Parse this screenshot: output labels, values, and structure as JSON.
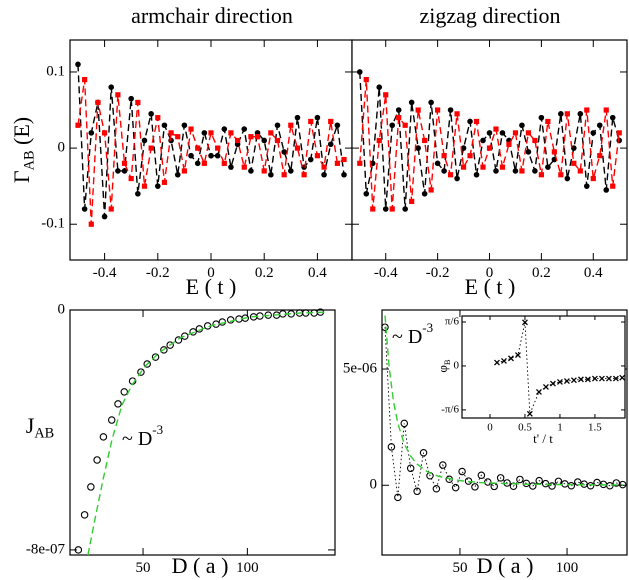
{
  "chart_data": [
    {
      "type": "line",
      "title": "armchair direction",
      "xlabel": "E ( t )",
      "ylabel": {
        "text": "Γ",
        "sub": "AB",
        "tail": " (E)"
      },
      "xlim": [
        -0.53,
        0.53
      ],
      "xticks": [
        -0.4,
        -0.2,
        0,
        0.2,
        0.4
      ],
      "ylim": [
        -0.147,
        0.142
      ],
      "yticks": [
        -0.1,
        0,
        0.1
      ],
      "ytick_labels": true,
      "x": [
        -0.5,
        -0.475,
        -0.45,
        -0.425,
        -0.4,
        -0.375,
        -0.35,
        -0.325,
        -0.3,
        -0.275,
        -0.25,
        -0.225,
        -0.2,
        -0.175,
        -0.15,
        -0.125,
        -0.1,
        -0.075,
        -0.05,
        -0.025,
        0,
        0.025,
        0.05,
        0.075,
        0.1,
        0.125,
        0.15,
        0.175,
        0.2,
        0.225,
        0.25,
        0.275,
        0.3,
        0.325,
        0.35,
        0.375,
        0.4,
        0.425,
        0.45,
        0.475,
        0.5
      ],
      "series": [
        {
          "color": "#000000",
          "marker": "circle",
          "line": "dashed",
          "values": [
            0.11,
            -0.08,
            0.02,
            0.06,
            -0.09,
            0.08,
            -0.03,
            -0.03,
            0.065,
            -0.06,
            0.01,
            0.045,
            -0.05,
            0.03,
            0.01,
            -0.035,
            0.03,
            -0.01,
            -0.02,
            0.02,
            -0.01,
            -0.01,
            0.025,
            -0.025,
            0.005,
            0.025,
            -0.03,
            0.02,
            0.01,
            -0.035,
            0.03,
            -0.005,
            -0.03,
            0.04,
            -0.025,
            -0.015,
            0.04,
            -0.035,
            0.005,
            0.03,
            -0.035
          ]
        },
        {
          "color": "#ff0000",
          "marker": "square",
          "line": "dashed",
          "values": [
            0.03,
            0.09,
            -0.1,
            0.06,
            0.02,
            -0.08,
            0.07,
            -0.02,
            -0.04,
            0.06,
            -0.05,
            0.0,
            0.04,
            -0.045,
            0.02,
            0.015,
            -0.03,
            0.025,
            0.0,
            -0.02,
            0.02,
            0.0,
            -0.02,
            0.02,
            0.01,
            -0.025,
            0.015,
            0.015,
            -0.03,
            0.02,
            0.01,
            -0.035,
            0.03,
            0.0,
            -0.035,
            0.035,
            -0.01,
            -0.025,
            0.035,
            -0.02,
            -0.015
          ]
        }
      ]
    },
    {
      "type": "line",
      "title": "zigzag direction",
      "xlabel": "E ( t )",
      "xlim": [
        -0.53,
        0.53
      ],
      "xticks": [
        -0.4,
        -0.2,
        0,
        0.2,
        0.4
      ],
      "ylim": [
        -0.147,
        0.142
      ],
      "yticks": [
        -0.1,
        0,
        0.1
      ],
      "ytick_labels": false,
      "x": [
        -0.5,
        -0.475,
        -0.45,
        -0.425,
        -0.4,
        -0.375,
        -0.35,
        -0.325,
        -0.3,
        -0.275,
        -0.25,
        -0.225,
        -0.2,
        -0.175,
        -0.15,
        -0.125,
        -0.1,
        -0.075,
        -0.05,
        -0.025,
        0,
        0.025,
        0.05,
        0.075,
        0.1,
        0.125,
        0.15,
        0.175,
        0.2,
        0.225,
        0.25,
        0.275,
        0.3,
        0.325,
        0.35,
        0.375,
        0.4,
        0.425,
        0.45,
        0.475,
        0.5
      ],
      "series": [
        {
          "color": "#000000",
          "marker": "circle",
          "line": "dashed",
          "values": [
            0.1,
            -0.06,
            -0.02,
            0.08,
            -0.08,
            0.03,
            0.05,
            -0.08,
            0.06,
            0.0,
            -0.06,
            0.06,
            -0.02,
            -0.03,
            0.05,
            -0.04,
            0.0,
            0.035,
            -0.035,
            0.01,
            0.02,
            -0.03,
            0.02,
            0.01,
            -0.03,
            0.03,
            -0.005,
            -0.03,
            0.04,
            -0.025,
            -0.015,
            0.045,
            -0.04,
            0.0,
            0.045,
            -0.05,
            0.02,
            0.03,
            -0.055,
            0.04,
            0.01
          ]
        },
        {
          "color": "#ff0000",
          "marker": "square",
          "line": "dashed",
          "values": [
            -0.02,
            0.09,
            -0.08,
            0.01,
            0.07,
            -0.08,
            0.04,
            0.03,
            -0.07,
            0.05,
            0.01,
            -0.055,
            0.05,
            -0.01,
            -0.035,
            0.045,
            -0.025,
            -0.01,
            0.035,
            -0.025,
            0.0,
            0.025,
            -0.025,
            0.005,
            0.02,
            -0.03,
            0.02,
            0.01,
            -0.035,
            0.035,
            -0.005,
            -0.035,
            0.045,
            -0.02,
            -0.03,
            0.05,
            -0.04,
            -0.01,
            0.05,
            -0.05,
            0.02
          ]
        }
      ]
    },
    {
      "type": "scatter",
      "xlabel": "D ( a )",
      "ylabel": {
        "text": "J",
        "sub": "AB"
      },
      "annotation": {
        "text": "~ D",
        "sup": "-3"
      },
      "xlim": [
        15,
        142
      ],
      "xticks": [
        50,
        100
      ],
      "ylim": [
        -8.17e-07,
        0
      ],
      "yticks": [
        {
          "value": -8e-07,
          "label": "-8e-07"
        },
        0
      ],
      "ytick_labels": true,
      "series": [
        {
          "color": "#000000",
          "marker": "circle-open",
          "line": "none",
          "x": [
            19,
            22,
            25,
            28,
            31,
            35,
            38,
            41,
            45,
            49,
            52,
            56,
            60,
            63,
            67,
            70,
            74,
            77,
            81,
            85,
            88,
            92,
            96,
            99,
            103,
            106,
            110,
            114,
            117,
            121,
            125,
            128,
            132,
            135
          ],
          "values": [
            -8e-07,
            -6.83e-07,
            -5.9e-07,
            -5e-07,
            -4.23e-07,
            -3.67e-07,
            -3.13e-07,
            -2.73e-07,
            -2.37e-07,
            -2.07e-07,
            -1.8e-07,
            -1.57e-07,
            -1.33e-07,
            -1.17e-07,
            -1e-07,
            -8.7e-08,
            -7.3e-08,
            -6.3e-08,
            -5.3e-08,
            -4.7e-08,
            -4e-08,
            -3.3e-08,
            -3e-08,
            -2.7e-08,
            -2.3e-08,
            -2e-08,
            -1.7e-08,
            -1.7e-08,
            -1.3e-08,
            -1.3e-08,
            -1e-08,
            -1e-08,
            -1e-08,
            -7e-09
          ]
        },
        {
          "color": "#33cc33",
          "marker": "none",
          "line": "dashed",
          "x": [
            23.6,
            26.9,
            30.8,
            35.1,
            39.9,
            44.7,
            51,
            58.2,
            67.8,
            82.2,
            101.4,
            125.5,
            137.5
          ],
          "values": [
            -8.17e-07,
            -7e-07,
            -5.67e-07,
            -4.33e-07,
            -3.17e-07,
            -2.5e-07,
            -1.87e-07,
            -1.4e-07,
            -9.3e-08,
            -5.3e-08,
            -2.3e-08,
            -1e-08,
            -7e-09
          ]
        }
      ]
    },
    {
      "type": "scatter",
      "xlabel": "D ( a )",
      "annotation": {
        "text": "~ D",
        "sup": "-3"
      },
      "xlim": [
        13.6,
        128
      ],
      "xticks": [
        50,
        100
      ],
      "ylim": [
        -3e-06,
        7.54e-06
      ],
      "yticks": [
        0,
        {
          "value": 5e-06,
          "label": "5e-06"
        }
      ],
      "ytick_labels": true,
      "series": [
        {
          "color": "#000000",
          "marker": "circle-open",
          "line": "dotted",
          "x": [
            15,
            18,
            21,
            24,
            27,
            30,
            33,
            36,
            39,
            42,
            45,
            48,
            51,
            54,
            57,
            60,
            63,
            66,
            69,
            72,
            75,
            78,
            81,
            84,
            87,
            90,
            93,
            96,
            99,
            102,
            105,
            108,
            111,
            114,
            117,
            120,
            123,
            126
          ],
          "values": [
            6.8e-06,
            1.65e-06,
            -5.2e-07,
            2.66e-06,
            7.3e-07,
            -2.6e-07,
            1.4e-06,
            4.1e-07,
            -1.5e-07,
            8.7e-07,
            2.6e-07,
            -1e-07,
            5.9e-07,
            1.8e-07,
            -7e-08,
            4.3e-07,
            1.4e-07,
            -5e-08,
            3.2e-07,
            1e-07,
            -4e-08,
            2.5e-07,
            8e-08,
            -3e-08,
            2e-07,
            7e-08,
            -3e-08,
            1.7e-07,
            6e-08,
            -2e-08,
            1.4e-07,
            5e-08,
            -2e-08,
            1.2e-07,
            4e-08,
            -2e-08,
            1e-07,
            3e-08
          ]
        },
        {
          "color": "#33cc33",
          "marker": "none",
          "line": "dashed",
          "x": [
            15,
            17,
            19,
            21,
            24,
            27,
            30,
            35,
            40,
            50,
            60,
            80,
            100,
            126
          ],
          "values": [
            7.3e-06,
            5.02e-06,
            3.59e-06,
            2.66e-06,
            1.78e-06,
            1.25e-06,
            9.1e-07,
            5.7e-07,
            3.85e-07,
            2e-07,
            1.1e-07,
            4.8e-08,
            2.5e-08,
            1.2e-08
          ]
        }
      ]
    },
    {
      "type": "scatter",
      "xlabel": "t' / t",
      "ylabel": {
        "text": "φ",
        "sub": "B"
      },
      "xlim": [
        -0.4,
        1.93
      ],
      "xticks": [
        0,
        0.5,
        1,
        1.5
      ],
      "ylim": [
        -0.62,
        0.595
      ],
      "yticks": [
        {
          "value": -0.5236,
          "label": "-π/6"
        },
        0,
        {
          "value": 0.5236,
          "label": "π/6"
        }
      ],
      "ytick_labels": true,
      "series": [
        {
          "color": "#000000",
          "marker": "cross",
          "line": "dotted",
          "x": [
            0.1,
            0.2,
            0.3,
            0.4,
            0.5,
            0.57,
            0.7,
            0.8,
            0.9,
            1.0,
            1.1,
            1.2,
            1.3,
            1.4,
            1.5,
            1.6,
            1.7,
            1.8,
            1.89
          ],
          "values": [
            0.04,
            0.06,
            0.09,
            0.13,
            0.52,
            -0.57,
            -0.31,
            -0.25,
            -0.21,
            -0.19,
            -0.18,
            -0.17,
            -0.16,
            -0.16,
            -0.15,
            -0.15,
            -0.15,
            -0.15,
            -0.14
          ]
        }
      ]
    }
  ]
}
